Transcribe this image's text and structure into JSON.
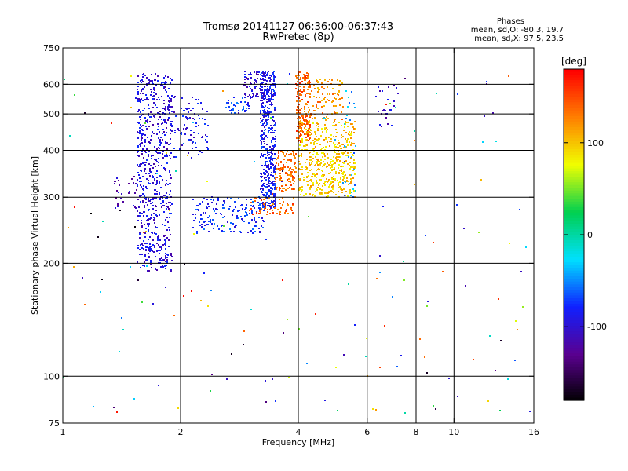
{
  "header": {
    "title": "Tromsø 20141127 06:36:00-06:37:43",
    "subtitle": "RwPretec (8p)",
    "stats_title": "Phases",
    "stats_o": "mean, sd,O: -80.3, 19.7",
    "stats_x": "mean, sd,X:  97.5, 23.5"
  },
  "chart_data": {
    "type": "scatter",
    "title": "Tromsø 20141127 06:36:00-06:37:43",
    "subtitle": "RwPretec (8p)",
    "xlabel": "Frequency [MHz]",
    "ylabel": "Stationary phase Virtual Height [km]",
    "x_scale": "log",
    "y_scale": "log",
    "xlim": [
      1,
      16
    ],
    "ylim": [
      75,
      750
    ],
    "x_ticks": [
      1,
      2,
      4,
      6,
      8,
      10,
      16
    ],
    "y_ticks": [
      75,
      100,
      200,
      300,
      400,
      500,
      600,
      750
    ],
    "x_grid": [
      2,
      4,
      6,
      8,
      10
    ],
    "y_grid": [
      100,
      200,
      300,
      400,
      500,
      600
    ],
    "grid": true,
    "colorbar": {
      "label": "[deg]",
      "min": -180,
      "max": 180,
      "ticks": [
        100,
        0,
        -100
      ],
      "colormap": "rainbow",
      "colors": [
        "#000000",
        "#5a0090",
        "#1020ff",
        "#00e0ff",
        "#00d050",
        "#f0ff00",
        "#ff8000",
        "#ff0000"
      ]
    },
    "series": [
      {
        "xmin": 1.55,
        "xmax": 1.9,
        "ymin": 190,
        "ymax": 640,
        "phase": -95,
        "count": 650
      },
      {
        "xmin": 1.9,
        "xmax": 2.35,
        "ymin": 380,
        "ymax": 560,
        "phase": -90,
        "count": 90
      },
      {
        "xmin": 1.35,
        "xmax": 1.55,
        "ymin": 280,
        "ymax": 340,
        "phase": -110,
        "count": 30
      },
      {
        "xmin": 2.6,
        "xmax": 3.0,
        "ymin": 500,
        "ymax": 560,
        "phase": -70,
        "count": 40
      },
      {
        "xmin": 2.9,
        "xmax": 3.3,
        "ymin": 550,
        "ymax": 650,
        "phase": -100,
        "count": 90
      },
      {
        "xmin": 2.15,
        "xmax": 3.3,
        "ymin": 240,
        "ymax": 300,
        "phase": -75,
        "count": 170
      },
      {
        "xmin": 3.2,
        "xmax": 3.5,
        "ymin": 280,
        "ymax": 650,
        "phase": -85,
        "count": 450
      },
      {
        "xmin": 3.0,
        "xmax": 3.9,
        "ymin": 270,
        "ymax": 300,
        "phase": 140,
        "count": 60
      },
      {
        "xmin": 3.5,
        "xmax": 3.95,
        "ymin": 310,
        "ymax": 400,
        "phase": 135,
        "count": 120
      },
      {
        "xmin": 3.95,
        "xmax": 4.3,
        "ymin": 420,
        "ymax": 650,
        "phase": 145,
        "count": 180
      },
      {
        "xmin": 4.0,
        "xmax": 5.6,
        "ymin": 300,
        "ymax": 480,
        "phase": 100,
        "count": 500
      },
      {
        "xmin": 4.3,
        "xmax": 5.2,
        "ymin": 480,
        "ymax": 620,
        "phase": 120,
        "count": 90
      },
      {
        "xmin": 5.2,
        "xmax": 5.6,
        "ymin": 300,
        "ymax": 580,
        "phase": -40,
        "count": 30
      },
      {
        "xmin": 6.3,
        "xmax": 7.2,
        "ymin": 460,
        "ymax": 600,
        "phase": -100,
        "count": 25
      },
      {
        "xmin": 1.0,
        "xmax": 16.0,
        "ymin": 78,
        "ymax": 640,
        "phase": 0,
        "count": 170
      }
    ]
  }
}
